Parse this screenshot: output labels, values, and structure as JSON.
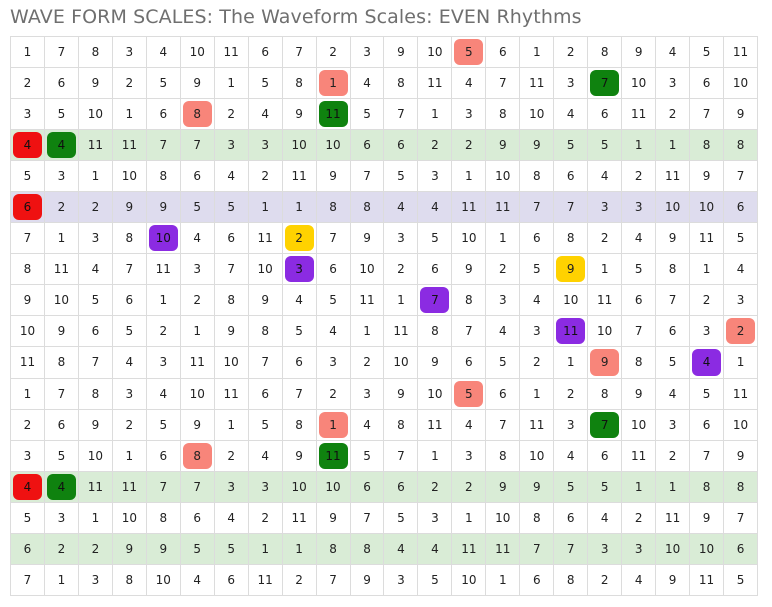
{
  "title": "WAVE FORM SCALES: The Waveform Scales: EVEN Rhythms",
  "colors": {
    "red": "#ef1111",
    "green": "#0f820f",
    "salmon": "#f8857a",
    "purple": "#8b2be2",
    "yellow": "#ffd200",
    "band_green": "#d9ecd6",
    "band_purple": "#dedcee"
  },
  "rows": [
    {
      "band": "",
      "cells": [
        "1",
        "7",
        "8",
        "3",
        "4",
        "10",
        "11",
        "6",
        "7",
        "2",
        "3",
        "9",
        "10",
        "5",
        "6",
        "1",
        "2",
        "8",
        "9",
        "4",
        "5",
        "11"
      ],
      "hl": {
        "13": "salmon"
      }
    },
    {
      "band": "",
      "cells": [
        "2",
        "6",
        "9",
        "2",
        "5",
        "9",
        "1",
        "5",
        "8",
        "1",
        "4",
        "8",
        "11",
        "4",
        "7",
        "11",
        "3",
        "7",
        "10",
        "3",
        "6",
        "10"
      ],
      "hl": {
        "9": "salmon",
        "17": "green"
      }
    },
    {
      "band": "",
      "cells": [
        "3",
        "5",
        "10",
        "1",
        "6",
        "8",
        "2",
        "4",
        "9",
        "11",
        "5",
        "7",
        "1",
        "3",
        "8",
        "10",
        "4",
        "6",
        "11",
        "2",
        "7",
        "9"
      ],
      "hl": {
        "5": "salmon",
        "9": "green"
      }
    },
    {
      "band": "green",
      "cells": [
        "4",
        "4",
        "11",
        "11",
        "7",
        "7",
        "3",
        "3",
        "10",
        "10",
        "6",
        "6",
        "2",
        "2",
        "9",
        "9",
        "5",
        "5",
        "1",
        "1",
        "8",
        "8"
      ],
      "hl": {
        "0": "red",
        "1": "green"
      }
    },
    {
      "band": "",
      "cells": [
        "5",
        "3",
        "1",
        "10",
        "8",
        "6",
        "4",
        "2",
        "11",
        "9",
        "7",
        "5",
        "3",
        "1",
        "10",
        "8",
        "6",
        "4",
        "2",
        "11",
        "9",
        "7"
      ],
      "hl": {}
    },
    {
      "band": "purple",
      "cells": [
        "6",
        "2",
        "2",
        "9",
        "9",
        "5",
        "5",
        "1",
        "1",
        "8",
        "8",
        "4",
        "4",
        "11",
        "11",
        "7",
        "7",
        "3",
        "3",
        "10",
        "10",
        "6"
      ],
      "hl": {
        "0": "red"
      }
    },
    {
      "band": "",
      "cells": [
        "7",
        "1",
        "3",
        "8",
        "10",
        "4",
        "6",
        "11",
        "2",
        "7",
        "9",
        "3",
        "5",
        "10",
        "1",
        "6",
        "8",
        "2",
        "4",
        "9",
        "11",
        "5"
      ],
      "hl": {
        "4": "purple",
        "8": "yellow"
      }
    },
    {
      "band": "",
      "cells": [
        "8",
        "11",
        "4",
        "7",
        "11",
        "3",
        "7",
        "10",
        "3",
        "6",
        "10",
        "2",
        "6",
        "9",
        "2",
        "5",
        "9",
        "1",
        "5",
        "8",
        "1",
        "4"
      ],
      "hl": {
        "8": "purple",
        "16": "yellow"
      }
    },
    {
      "band": "",
      "cells": [
        "9",
        "10",
        "5",
        "6",
        "1",
        "2",
        "8",
        "9",
        "4",
        "5",
        "11",
        "1",
        "7",
        "8",
        "3",
        "4",
        "10",
        "11",
        "6",
        "7",
        "2",
        "3"
      ],
      "hl": {
        "12": "purple"
      }
    },
    {
      "band": "",
      "cells": [
        "10",
        "9",
        "6",
        "5",
        "2",
        "1",
        "9",
        "8",
        "5",
        "4",
        "1",
        "11",
        "8",
        "7",
        "4",
        "3",
        "11",
        "10",
        "7",
        "6",
        "3",
        "2"
      ],
      "hl": {
        "16": "purple",
        "21": "salmon"
      }
    },
    {
      "band": "",
      "cells": [
        "11",
        "8",
        "7",
        "4",
        "3",
        "11",
        "10",
        "7",
        "6",
        "3",
        "2",
        "10",
        "9",
        "6",
        "5",
        "2",
        "1",
        "9",
        "8",
        "5",
        "4",
        "1"
      ],
      "hl": {
        "17": "salmon",
        "20": "purple"
      }
    },
    {
      "band": "",
      "cells": [
        "1",
        "7",
        "8",
        "3",
        "4",
        "10",
        "11",
        "6",
        "7",
        "2",
        "3",
        "9",
        "10",
        "5",
        "6",
        "1",
        "2",
        "8",
        "9",
        "4",
        "5",
        "11"
      ],
      "hl": {
        "13": "salmon"
      }
    },
    {
      "band": "",
      "cells": [
        "2",
        "6",
        "9",
        "2",
        "5",
        "9",
        "1",
        "5",
        "8",
        "1",
        "4",
        "8",
        "11",
        "4",
        "7",
        "11",
        "3",
        "7",
        "10",
        "3",
        "6",
        "10"
      ],
      "hl": {
        "9": "salmon",
        "17": "green"
      }
    },
    {
      "band": "",
      "cells": [
        "3",
        "5",
        "10",
        "1",
        "6",
        "8",
        "2",
        "4",
        "9",
        "11",
        "5",
        "7",
        "1",
        "3",
        "8",
        "10",
        "4",
        "6",
        "11",
        "2",
        "7",
        "9"
      ],
      "hl": {
        "5": "salmon",
        "9": "green"
      }
    },
    {
      "band": "green",
      "cells": [
        "4",
        "4",
        "11",
        "11",
        "7",
        "7",
        "3",
        "3",
        "10",
        "10",
        "6",
        "6",
        "2",
        "2",
        "9",
        "9",
        "5",
        "5",
        "1",
        "1",
        "8",
        "8"
      ],
      "hl": {
        "0": "red",
        "1": "green"
      }
    },
    {
      "band": "",
      "cells": [
        "5",
        "3",
        "1",
        "10",
        "8",
        "6",
        "4",
        "2",
        "11",
        "9",
        "7",
        "5",
        "3",
        "1",
        "10",
        "8",
        "6",
        "4",
        "2",
        "11",
        "9",
        "7"
      ],
      "hl": {}
    },
    {
      "band": "green",
      "cells": [
        "6",
        "2",
        "2",
        "9",
        "9",
        "5",
        "5",
        "1",
        "1",
        "8",
        "8",
        "4",
        "4",
        "11",
        "11",
        "7",
        "7",
        "3",
        "3",
        "10",
        "10",
        "6"
      ],
      "hl": {}
    },
    {
      "band": "",
      "cells": [
        "7",
        "1",
        "3",
        "8",
        "10",
        "4",
        "6",
        "11",
        "2",
        "7",
        "9",
        "3",
        "5",
        "10",
        "1",
        "6",
        "8",
        "2",
        "4",
        "9",
        "11",
        "5"
      ],
      "hl": {}
    }
  ]
}
